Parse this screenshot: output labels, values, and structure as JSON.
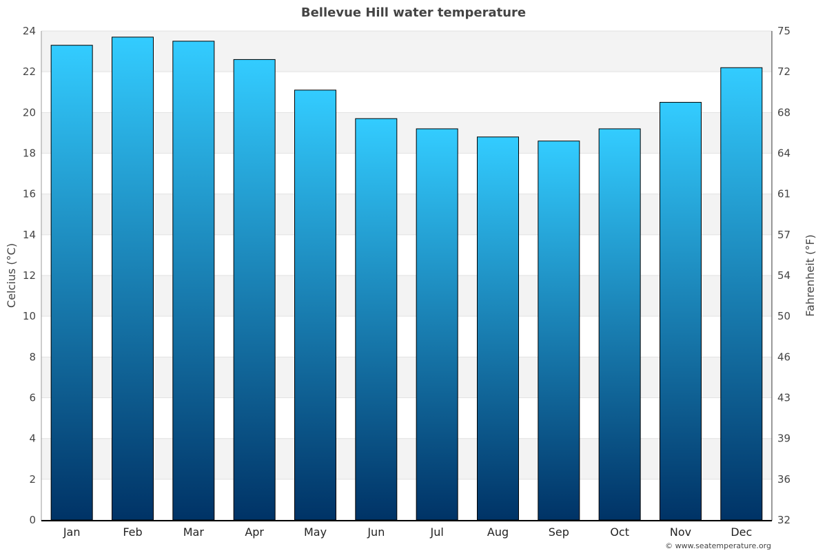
{
  "chart_data": {
    "type": "bar",
    "title": "Bellevue Hill water temperature",
    "categories": [
      "Jan",
      "Feb",
      "Mar",
      "Apr",
      "May",
      "Jun",
      "Jul",
      "Aug",
      "Sep",
      "Oct",
      "Nov",
      "Dec"
    ],
    "values": [
      23.3,
      23.7,
      23.5,
      22.6,
      21.1,
      19.7,
      19.2,
      18.8,
      18.6,
      19.2,
      20.5,
      22.2
    ],
    "ylabel": "Celcius (°C)",
    "ylabel_right": "Fahrenheit (°F)",
    "ylim": [
      0,
      24
    ],
    "yticks": [
      "0",
      "2",
      "4",
      "6",
      "8",
      "10",
      "12",
      "14",
      "16",
      "18",
      "20",
      "22",
      "24"
    ],
    "yticks_right": [
      "32",
      "36",
      "39",
      "43",
      "46",
      "50",
      "54",
      "57",
      "61",
      "64",
      "68",
      "72",
      "75"
    ],
    "grid": "horizontal alternating bands",
    "legend": "none",
    "colors": {
      "bar_top": "#33ccff",
      "bar_bottom": "#003366",
      "band": "#f3f3f3",
      "title": "#444444"
    }
  },
  "credit": "© www.seatemperature.org"
}
